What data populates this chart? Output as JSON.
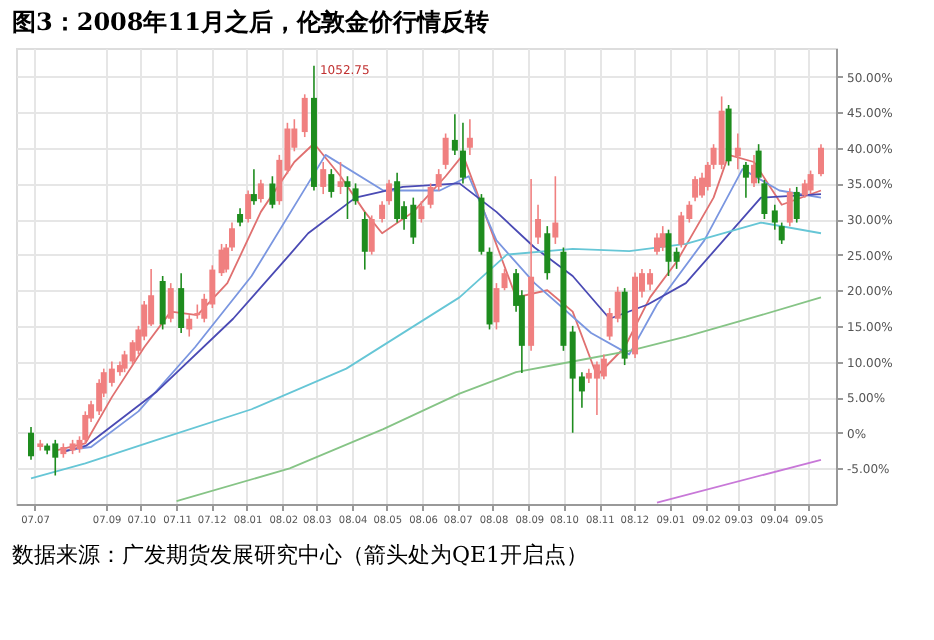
{
  "chart_data": {
    "type": "candlestick",
    "title": "图3：2008年11月之后，伦敦金价行情反转",
    "annotations": [
      {
        "text": "1052.75",
        "x": "2008-02-28",
        "y": 51.5
      },
      "数据来源：广发期货发展研究中心（箭头处为QE1开启点）"
    ],
    "x": [
      "2007-06-28",
      "2007-07-06",
      "2007-07-12",
      "2007-07-19",
      "2007-07-26",
      "2007-08-03",
      "2007-08-09",
      "2007-08-14",
      "2007-08-19",
      "2007-08-26",
      "2007-08-30",
      "2007-09-06",
      "2007-09-13",
      "2007-09-17",
      "2007-09-24",
      "2007-09-29",
      "2007-10-04",
      "2007-10-10",
      "2007-10-20",
      "2007-10-27",
      "2007-11-05",
      "2007-11-12",
      "2007-11-19",
      "2007-11-25",
      "2007-12-02",
      "2007-12-10",
      "2007-12-14",
      "2007-12-19",
      "2007-12-26",
      "2008-01-02",
      "2008-01-07",
      "2008-01-13",
      "2008-01-23",
      "2008-01-29",
      "2008-02-05",
      "2008-02-11",
      "2008-02-20",
      "2008-02-28",
      "2008-03-07",
      "2008-03-14",
      "2008-03-22",
      "2008-03-28",
      "2008-04-04",
      "2008-04-12",
      "2008-04-18",
      "2008-04-27",
      "2008-05-03",
      "2008-05-10",
      "2008-05-16",
      "2008-05-24",
      "2008-05-31",
      "2008-06-08",
      "2008-06-15",
      "2008-06-21",
      "2008-06-29",
      "2008-07-06",
      "2008-07-12",
      "2008-07-22",
      "2008-07-29",
      "2008-08-04",
      "2008-08-11",
      "2008-08-21",
      "2008-08-26",
      "2008-09-03",
      "2008-09-09",
      "2008-09-17",
      "2008-09-24",
      "2008-10-01",
      "2008-10-09",
      "2008-10-17",
      "2008-10-23",
      "2008-10-30",
      "2008-11-05",
      "2008-11-10",
      "2008-11-17",
      "2008-11-23",
      "2008-12-02",
      "2008-12-08",
      "2008-12-15",
      "2008-12-21",
      "2008-12-26",
      "2008-12-31",
      "2009-01-07",
      "2009-01-11",
      "2009-01-18",
      "2009-01-23",
      "2009-01-29",
      "2009-02-03",
      "2009-02-08",
      "2009-02-15",
      "2009-02-21",
      "2009-03-01",
      "2009-03-08",
      "2009-03-15",
      "2009-03-19",
      "2009-03-24",
      "2009-04-02",
      "2009-04-08",
      "2009-04-15",
      "2009-04-21",
      "2009-04-28",
      "2009-05-03",
      "2009-05-12"
    ],
    "ohlc": [
      [
        0,
        0.8,
        -3.8,
        -3.3
      ],
      [
        -2,
        -1,
        -2.5,
        -1.5
      ],
      [
        -1.8,
        -1.5,
        -3,
        -2.5
      ],
      [
        -1.5,
        -1,
        -6,
        -3.5
      ],
      [
        -3,
        -1.5,
        -3.5,
        -2
      ],
      [
        -2.5,
        -1,
        -3,
        -1.5
      ],
      [
        -2.3,
        -0.5,
        -2.8,
        -1
      ],
      [
        -1,
        3,
        -1.5,
        2.5
      ],
      [
        2,
        4.5,
        1.5,
        4
      ],
      [
        3,
        7.5,
        2.5,
        7
      ],
      [
        5.5,
        9,
        5,
        8.5
      ],
      [
        7,
        10,
        6.5,
        9
      ],
      [
        8.5,
        10,
        8,
        9.5
      ],
      [
        9,
        11.5,
        8.5,
        11
      ],
      [
        10,
        13,
        9.5,
        12.7
      ],
      [
        11.5,
        15,
        11,
        14.5
      ],
      [
        13.5,
        18.5,
        13,
        18
      ],
      [
        15.2,
        23,
        15,
        19.3
      ],
      [
        21.3,
        22,
        14.5,
        15.2
      ],
      [
        16,
        21,
        15.5,
        20.3
      ],
      [
        20.3,
        22.4,
        14,
        14.7
      ],
      [
        14.5,
        16.5,
        13.5,
        16
      ],
      [
        16.5,
        18,
        16,
        16.8
      ],
      [
        16,
        19.5,
        15.5,
        18.8
      ],
      [
        18,
        23.5,
        17.5,
        22.9
      ],
      [
        22.4,
        26.5,
        22,
        25.7
      ],
      [
        22.9,
        26.5,
        22.5,
        26
      ],
      [
        26,
        29.5,
        25.5,
        28.7
      ],
      [
        30.7,
        31.5,
        29,
        29.5
      ],
      [
        30,
        34,
        29.5,
        33.5
      ],
      [
        33.5,
        37,
        32,
        32.5
      ],
      [
        32.8,
        35.5,
        32.3,
        35
      ],
      [
        35,
        36,
        31.5,
        32
      ],
      [
        32.5,
        39,
        32,
        38.3
      ],
      [
        36.8,
        43.5,
        36.3,
        42.7
      ],
      [
        40,
        44,
        39.5,
        42.7
      ],
      [
        42.2,
        47.5,
        41.5,
        47
      ],
      [
        47,
        51.5,
        34,
        34.5
      ],
      [
        34.5,
        38,
        33.5,
        37
      ],
      [
        36.3,
        37,
        33,
        33.8
      ],
      [
        34.5,
        38,
        33.5,
        35.3
      ],
      [
        35.3,
        36,
        30,
        34.5
      ],
      [
        34.3,
        35,
        32,
        32.5
      ],
      [
        30,
        31,
        22.9,
        25.4
      ],
      [
        25.4,
        30.5,
        25,
        30
      ],
      [
        30,
        32.5,
        29.5,
        32
      ],
      [
        32.5,
        35.5,
        32,
        35
      ],
      [
        35.3,
        36.5,
        29.5,
        30
      ],
      [
        31.8,
        32.5,
        28.5,
        30
      ],
      [
        32,
        33,
        26.5,
        27.4
      ],
      [
        30,
        32.5,
        29.5,
        31.8
      ],
      [
        32,
        35,
        31.5,
        34.5
      ],
      [
        34.5,
        37,
        34,
        36.3
      ],
      [
        37.6,
        42,
        37,
        41.4
      ],
      [
        41.1,
        44.7,
        39,
        39.6
      ],
      [
        39.6,
        43.5,
        35,
        35.8
      ],
      [
        40,
        44,
        39,
        41.4
      ],
      [
        33,
        33.5,
        25,
        25.4
      ],
      [
        25.4,
        26,
        14.5,
        15.2
      ],
      [
        15.5,
        21,
        14.5,
        20.3
      ],
      [
        20.3,
        23,
        20,
        22.4
      ],
      [
        22.4,
        23,
        17,
        17.8
      ],
      [
        19.3,
        20,
        8.4,
        12.2
      ],
      [
        12.2,
        35.6,
        11.5,
        21.9
      ],
      [
        27.4,
        32,
        26.5,
        30
      ],
      [
        28,
        29,
        21.5,
        22.4
      ],
      [
        27.4,
        36,
        26.5,
        29.5
      ],
      [
        25.4,
        26,
        11.5,
        12.2
      ],
      [
        14.2,
        15,
        0,
        7.6
      ],
      [
        7.9,
        8.5,
        3.5,
        5.8
      ],
      [
        7.6,
        9,
        7,
        8.4
      ],
      [
        7.6,
        10,
        2.5,
        9.6
      ],
      [
        7.9,
        11,
        7.5,
        10.4
      ],
      [
        13.5,
        17.5,
        13,
        16.8
      ],
      [
        16,
        20.5,
        15.5,
        19.8
      ],
      [
        19.8,
        20.3,
        9.5,
        10.4
      ],
      [
        11,
        22.5,
        10.5,
        21.9
      ],
      [
        19.8,
        23,
        19,
        22.4
      ],
      [
        20.8,
        23,
        20,
        22.4
      ],
      [
        25.4,
        28,
        25,
        27.4
      ],
      [
        26,
        29,
        25.5,
        28
      ],
      [
        28,
        28.5,
        22,
        24
      ],
      [
        25.4,
        26,
        23,
        24
      ],
      [
        26.4,
        31,
        26,
        30.5
      ],
      [
        30,
        32.5,
        29.5,
        32
      ],
      [
        33,
        36,
        32.5,
        35.6
      ],
      [
        33.3,
        36.5,
        33,
        35.8
      ],
      [
        34.5,
        38,
        34,
        37.6
      ],
      [
        37.6,
        40.5,
        37,
        40
      ],
      [
        37.6,
        47.2,
        37,
        45.2
      ],
      [
        45.5,
        46,
        37.5,
        38.1
      ],
      [
        38.8,
        42,
        37,
        40
      ],
      [
        37.6,
        38,
        33,
        35.8
      ],
      [
        35,
        39,
        34.5,
        37.6
      ],
      [
        39.6,
        40.5,
        35,
        35.8
      ],
      [
        35,
        35.5,
        30,
        30.7
      ],
      [
        31.2,
        32,
        28.5,
        29.5
      ],
      [
        29,
        29.5,
        26.5,
        27
      ],
      [
        29.5,
        34.3,
        29,
        33.8
      ],
      [
        33.8,
        34.5,
        29.5,
        30
      ],
      [
        33.3,
        35.5,
        33,
        35
      ],
      [
        34,
        36.8,
        33.5,
        36.3
      ],
      [
        36.3,
        40.5,
        36,
        40
      ]
    ],
    "colors": [
      "#1e8c1e",
      "#f08080",
      "#1e8c1e",
      "#1e8c1e",
      "#f08080",
      "#f08080",
      "#f08080",
      "#f08080",
      "#f08080",
      "#f08080",
      "#f08080",
      "#f08080",
      "#f08080",
      "#f08080",
      "#f08080",
      "#f08080",
      "#f08080",
      "#f08080",
      "#1e8c1e",
      "#f08080",
      "#1e8c1e",
      "#f08080",
      "#f08080",
      "#f08080",
      "#f08080",
      "#f08080",
      "#f08080",
      "#f08080",
      "#1e8c1e",
      "#f08080",
      "#1e8c1e",
      "#f08080",
      "#1e8c1e",
      "#f08080",
      "#f08080",
      "#f08080",
      "#f08080",
      "#1e8c1e",
      "#f08080",
      "#1e8c1e",
      "#f08080",
      "#1e8c1e",
      "#1e8c1e",
      "#1e8c1e",
      "#f08080",
      "#f08080",
      "#f08080",
      "#1e8c1e",
      "#1e8c1e",
      "#1e8c1e",
      "#f08080",
      "#f08080",
      "#f08080",
      "#f08080",
      "#1e8c1e",
      "#1e8c1e",
      "#f08080",
      "#1e8c1e",
      "#1e8c1e",
      "#f08080",
      "#f08080",
      "#1e8c1e",
      "#1e8c1e",
      "#f08080",
      "#f08080",
      "#1e8c1e",
      "#f08080",
      "#1e8c1e",
      "#1e8c1e",
      "#1e8c1e",
      "#f08080",
      "#f08080",
      "#f08080",
      "#f08080",
      "#f08080",
      "#1e8c1e",
      "#f08080",
      "#f08080",
      "#f08080",
      "#f08080",
      "#f08080",
      "#1e8c1e",
      "#1e8c1e",
      "#f08080",
      "#f08080",
      "#f08080",
      "#f08080",
      "#f08080",
      "#f08080",
      "#f08080",
      "#1e8c1e",
      "#f08080",
      "#1e8c1e",
      "#f08080",
      "#1e8c1e",
      "#1e8c1e",
      "#1e8c1e",
      "#1e8c1e",
      "#f08080",
      "#1e8c1e",
      "#f08080",
      "#f08080",
      "#f08080"
    ],
    "series": [
      {
        "type": "line",
        "color": "#e07070",
        "x": [
          "2007-07-19",
          "2007-08-14",
          "2007-09-06",
          "2007-10-04",
          "2007-10-27",
          "2007-11-19",
          "2007-12-15",
          "2008-01-13",
          "2008-02-11",
          "2008-02-28",
          "2008-03-22",
          "2008-04-12",
          "2008-04-27",
          "2008-05-24",
          "2008-06-21",
          "2008-07-06",
          "2008-07-29",
          "2008-08-21",
          "2008-09-17",
          "2008-10-09",
          "2008-10-30",
          "2008-11-23",
          "2008-12-15",
          "2009-01-07",
          "2009-02-08",
          "2009-02-21",
          "2009-03-15",
          "2009-04-08",
          "2009-05-12"
        ],
        "values": [
          -2.5,
          -1.5,
          5,
          12,
          17,
          16.5,
          21,
          31,
          38,
          40.6,
          36,
          31,
          28,
          31,
          36,
          39,
          29,
          19,
          20,
          17,
          8,
          12,
          19,
          24,
          33,
          39,
          38,
          32,
          34
        ]
      },
      {
        "type": "line",
        "color": "#7a96e0",
        "x": [
          "2007-07-26",
          "2007-08-19",
          "2007-09-29",
          "2007-11-17",
          "2008-01-05",
          "2008-02-23",
          "2008-03-09",
          "2008-04-28",
          "2008-06-16",
          "2008-07-11",
          "2008-08-04",
          "2008-09-06",
          "2008-10-25",
          "2008-11-27",
          "2008-12-21",
          "2009-01-31",
          "2009-03-05",
          "2009-04-06",
          "2009-05-12"
        ],
        "values": [
          -2.5,
          -2,
          3,
          12,
          22,
          35,
          39,
          34,
          34,
          36,
          27,
          21,
          14,
          11,
          18,
          27,
          37,
          34,
          33
        ]
      },
      {
        "type": "line",
        "color": "#4a4ab4",
        "x": [
          "2007-07-26",
          "2007-08-15",
          "2007-10-15",
          "2007-12-20",
          "2008-02-07",
          "2008-02-23",
          "2008-04-04",
          "2008-05-15",
          "2008-07-03",
          "2008-08-04",
          "2008-09-06",
          "2008-10-09",
          "2008-11-10",
          "2008-12-13",
          "2009-01-15",
          "2009-03-21",
          "2009-05-12"
        ],
        "values": [
          -2.7,
          -1.8,
          5.8,
          16,
          25,
          28,
          33,
          34.5,
          35,
          31,
          26,
          22,
          16,
          18,
          21,
          33,
          33.5
        ]
      },
      {
        "type": "line",
        "color": "#66c6d6",
        "x": [
          "2007-06-28",
          "2007-08-14",
          "2007-10-15",
          "2008-01-05",
          "2008-03-27",
          "2008-07-03",
          "2008-08-13",
          "2008-10-09",
          "2008-11-27",
          "2009-01-15",
          "2009-03-21",
          "2009-05-12"
        ],
        "values": [
          -6.4,
          -4.3,
          -1,
          3.3,
          9,
          19,
          25,
          25.8,
          25.5,
          26.5,
          29.5,
          28
        ]
      },
      {
        "type": "line",
        "color": "#86c486",
        "x": [
          "2007-11-01",
          "2008-02-07",
          "2008-04-28",
          "2008-07-03",
          "2008-08-21",
          "2008-10-09",
          "2008-11-27",
          "2009-01-15",
          "2009-03-21",
          "2009-05-12"
        ],
        "values": [
          -9.6,
          -5,
          0.5,
          5.5,
          8.5,
          10,
          11.5,
          13.5,
          16.5,
          19
        ]
      },
      {
        "type": "line",
        "color": "#c878d8",
        "x": [
          "2008-12-21",
          "2009-05-12"
        ],
        "values": [
          -9.8,
          -3.8
        ]
      }
    ],
    "xlim": [
      "2007-06-15",
      "2009-05-25"
    ],
    "xticks": [
      {
        "value": "2007-07-01",
        "label": "07.07"
      },
      {
        "value": "2007-09-01",
        "label": "07.09"
      },
      {
        "value": "2007-10-01",
        "label": "07.10"
      },
      {
        "value": "2007-11-01",
        "label": "07.11"
      },
      {
        "value": "2007-12-01",
        "label": "07.12"
      },
      {
        "value": "2008-01-01",
        "label": "08.01"
      },
      {
        "value": "2008-02-01",
        "label": "08.02"
      },
      {
        "value": "2008-03-01",
        "label": "08.03"
      },
      {
        "value": "2008-04-01",
        "label": "08.04"
      },
      {
        "value": "2008-05-01",
        "label": "08.05"
      },
      {
        "value": "2008-06-01",
        "label": "08.06"
      },
      {
        "value": "2008-07-01",
        "label": "08.07"
      },
      {
        "value": "2008-08-01",
        "label": "08.08"
      },
      {
        "value": "2008-09-01",
        "label": "08.09"
      },
      {
        "value": "2008-10-01",
        "label": "08.10"
      },
      {
        "value": "2008-11-01",
        "label": "08.11"
      },
      {
        "value": "2008-12-01",
        "label": "08.12"
      },
      {
        "value": "2009-01-01",
        "label": "09.01"
      },
      {
        "value": "2009-02-01",
        "label": "09.02"
      },
      {
        "value": "2009-03-01",
        "label": "09.03"
      },
      {
        "value": "2009-04-01",
        "label": "09.04"
      },
      {
        "value": "2009-05-01",
        "label": "09.05"
      }
    ],
    "ylim": [
      -10,
      54
    ],
    "yticks": [
      {
        "value": -5,
        "label": "-5.00%"
      },
      {
        "value": 0,
        "label": "0%"
      },
      {
        "value": 5,
        "label": "5.00%"
      },
      {
        "value": 10,
        "label": "10.00%"
      },
      {
        "value": 15,
        "label": "15.00%"
      },
      {
        "value": 20,
        "label": "20.00%"
      },
      {
        "value": 25,
        "label": "25.00%"
      },
      {
        "value": 30,
        "label": "30.00%"
      },
      {
        "value": 35,
        "label": "35.00%"
      },
      {
        "value": 40,
        "label": "40.00%"
      },
      {
        "value": 45,
        "label": "45.00%"
      },
      {
        "value": 50,
        "label": "50.00%"
      }
    ],
    "grid": true
  }
}
